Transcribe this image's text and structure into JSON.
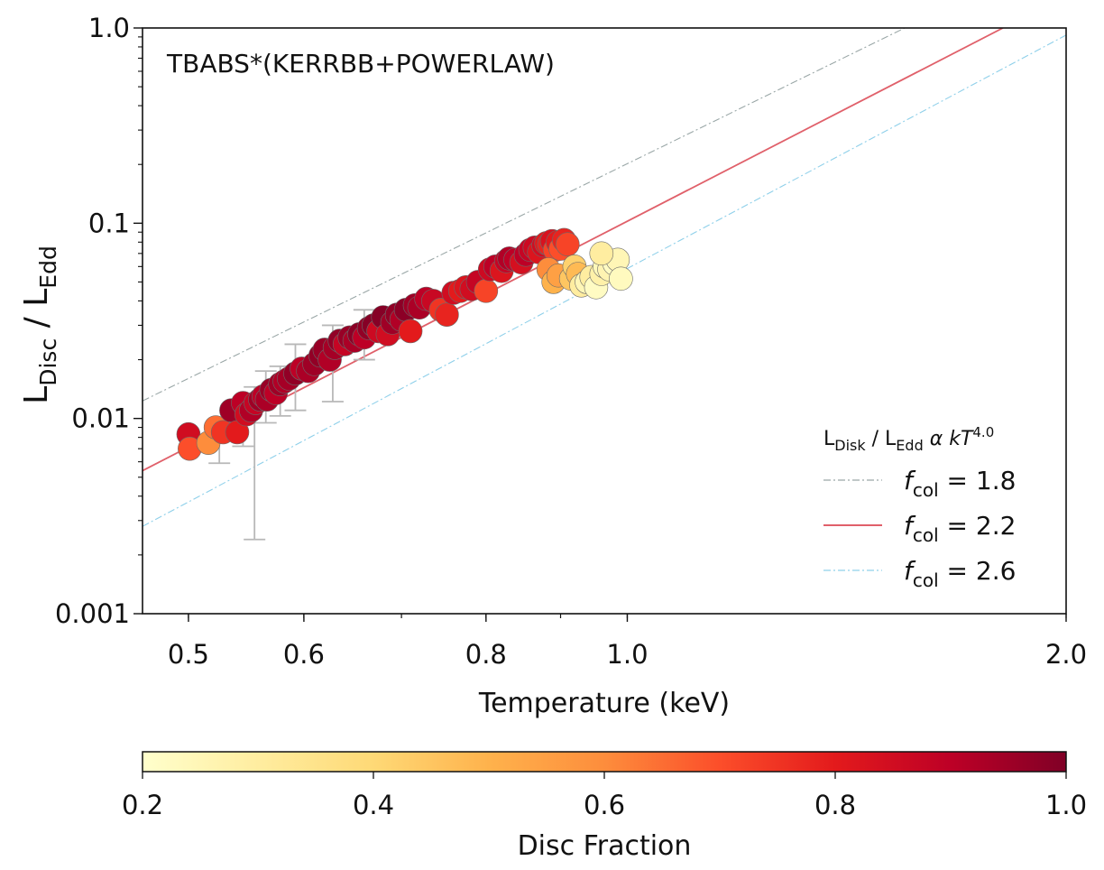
{
  "chart_data": {
    "type": "scatter",
    "annotation": "TBABS*(KERRBB+POWERLAW)",
    "xlabel": "Temperature (keV)",
    "ylabel": "L_Disc / L_Edd",
    "ylabel_parts": {
      "main1": "L",
      "sub1": "Disc",
      "sep": " / L",
      "sub2": "Edd"
    },
    "xscale": "log",
    "yscale": "log",
    "xlim": [
      0.465,
      2.0
    ],
    "ylim": [
      0.001,
      1.0
    ],
    "x_ticks": [
      {
        "v": 0.5,
        "label": "0.5"
      },
      {
        "v": 0.6,
        "label": "0.6"
      },
      {
        "v": 0.8,
        "label": "0.8"
      },
      {
        "v": 1.0,
        "label": "1.0"
      },
      {
        "v": 2.0,
        "label": "2.0"
      }
    ],
    "y_ticks": [
      {
        "v": 0.001,
        "label": "0.001"
      },
      {
        "v": 0.01,
        "label": "0.01"
      },
      {
        "v": 0.1,
        "label": "0.1"
      },
      {
        "v": 1.0,
        "label": "1.0"
      }
    ],
    "legend": {
      "title": {
        "main1": "L",
        "sub1": "Disk",
        "sep": " / L",
        "sub2": "Edd",
        "tail": " α kT",
        "sup": "4.0"
      },
      "position": "lower-right",
      "entries": [
        {
          "f": "f",
          "sub": "col",
          "text": " = 1.8",
          "color": "#9aa7a7",
          "dash": "8,3,2,3"
        },
        {
          "f": "f",
          "sub": "col",
          "text": " = 2.2",
          "color": "#e0606a",
          "dash": ""
        },
        {
          "f": "f",
          "sub": "col",
          "text": " = 2.6",
          "color": "#8fd0ea",
          "dash": "8,3,2,3"
        }
      ]
    },
    "relations": [
      {
        "name": "fcol = 1.8",
        "color": "#9aa7a7",
        "x": [
          0.465,
          1.55
        ],
        "y": [
          0.0123,
          1.0
        ]
      },
      {
        "name": "fcol = 2.2",
        "color": "#e0606a",
        "x": [
          0.465,
          1.81
        ],
        "y": [
          0.0054,
          1.0
        ]
      },
      {
        "name": "fcol = 2.6",
        "color": "#8fd0ea",
        "x": [
          0.465,
          2.0
        ],
        "y": [
          0.0028,
          0.92
        ]
      }
    ],
    "error_bars": [
      {
        "x": 0.525,
        "y": 0.0075,
        "lo": 0.0059,
        "hi": 0.0092
      },
      {
        "x": 0.545,
        "y": 0.0095,
        "lo": 0.0072,
        "hi": 0.0125
      },
      {
        "x": 0.555,
        "y": 0.0107,
        "lo": 0.0024,
        "hi": 0.0145
      },
      {
        "x": 0.565,
        "y": 0.0125,
        "lo": 0.0095,
        "hi": 0.0175
      },
      {
        "x": 0.578,
        "y": 0.015,
        "lo": 0.0103,
        "hi": 0.0185
      },
      {
        "x": 0.592,
        "y": 0.018,
        "lo": 0.011,
        "hi": 0.024
      },
      {
        "x": 0.628,
        "y": 0.022,
        "lo": 0.0122,
        "hi": 0.03
      },
      {
        "x": 0.66,
        "y": 0.028,
        "lo": 0.02,
        "hi": 0.036
      }
    ],
    "series": [
      {
        "name": "Disc Fraction (colour)",
        "x": [
          0.5,
          0.501,
          0.516,
          0.522,
          0.528,
          0.535,
          0.54,
          0.545,
          0.548,
          0.552,
          0.556,
          0.56,
          0.563,
          0.566,
          0.57,
          0.574,
          0.578,
          0.582,
          0.586,
          0.592,
          0.598,
          0.604,
          0.61,
          0.616,
          0.62,
          0.625,
          0.63,
          0.635,
          0.64,
          0.645,
          0.65,
          0.655,
          0.66,
          0.665,
          0.67,
          0.675,
          0.68,
          0.685,
          0.69,
          0.695,
          0.7,
          0.705,
          0.71,
          0.715,
          0.72,
          0.728,
          0.736,
          0.745,
          0.752,
          0.76,
          0.768,
          0.775,
          0.782,
          0.79,
          0.8,
          0.805,
          0.812,
          0.82,
          0.826,
          0.83,
          0.838,
          0.846,
          0.852,
          0.858,
          0.864,
          0.87,
          0.876,
          0.88,
          0.884,
          0.888,
          0.892,
          0.896,
          0.9,
          0.905,
          0.91,
          0.883,
          0.89,
          0.897,
          0.915,
          0.92,
          0.925,
          0.93,
          0.938,
          0.945,
          0.952,
          0.96,
          0.965,
          0.972,
          0.98,
          0.985,
          0.99,
          0.96
        ],
        "y": [
          0.0083,
          0.007,
          0.0075,
          0.009,
          0.0085,
          0.011,
          0.0085,
          0.012,
          0.0105,
          0.011,
          0.012,
          0.0125,
          0.013,
          0.0125,
          0.014,
          0.0135,
          0.015,
          0.0155,
          0.016,
          0.017,
          0.018,
          0.0175,
          0.019,
          0.021,
          0.0225,
          0.02,
          0.023,
          0.025,
          0.024,
          0.026,
          0.025,
          0.027,
          0.026,
          0.029,
          0.03,
          0.028,
          0.033,
          0.027,
          0.031,
          0.034,
          0.032,
          0.036,
          0.028,
          0.038,
          0.037,
          0.041,
          0.04,
          0.036,
          0.034,
          0.044,
          0.045,
          0.047,
          0.046,
          0.05,
          0.045,
          0.058,
          0.06,
          0.057,
          0.064,
          0.066,
          0.065,
          0.063,
          0.069,
          0.073,
          0.075,
          0.071,
          0.077,
          0.079,
          0.078,
          0.081,
          0.073,
          0.08,
          0.074,
          0.082,
          0.078,
          0.058,
          0.05,
          0.054,
          0.052,
          0.06,
          0.055,
          0.048,
          0.05,
          0.053,
          0.047,
          0.055,
          0.06,
          0.058,
          0.062,
          0.065,
          0.052,
          0.07
        ],
        "c": [
          0.85,
          0.7,
          0.6,
          0.65,
          0.75,
          0.95,
          0.8,
          0.9,
          0.85,
          0.92,
          0.88,
          0.95,
          0.9,
          0.93,
          0.96,
          0.9,
          0.95,
          0.92,
          0.94,
          0.97,
          0.9,
          0.93,
          0.95,
          0.97,
          0.96,
          0.92,
          0.94,
          0.97,
          0.88,
          0.96,
          0.93,
          0.98,
          0.9,
          0.97,
          0.99,
          0.86,
          0.99,
          0.85,
          0.95,
          0.97,
          0.92,
          0.98,
          0.8,
          0.95,
          0.93,
          0.9,
          0.87,
          0.75,
          0.78,
          0.85,
          0.8,
          0.82,
          0.85,
          0.88,
          0.72,
          0.86,
          0.9,
          0.82,
          0.88,
          0.92,
          0.9,
          0.84,
          0.9,
          0.88,
          0.86,
          0.82,
          0.85,
          0.8,
          0.78,
          0.83,
          0.72,
          0.8,
          0.7,
          0.78,
          0.72,
          0.6,
          0.5,
          0.55,
          0.45,
          0.42,
          0.48,
          0.3,
          0.25,
          0.3,
          0.22,
          0.28,
          0.24,
          0.26,
          0.22,
          0.25,
          0.23,
          0.3
        ]
      }
    ],
    "colorbar": {
      "label": "Disc Fraction",
      "range": [
        0.2,
        1.0
      ],
      "ticks": [
        {
          "v": 0.2,
          "label": "0.2"
        },
        {
          "v": 0.4,
          "label": "0.4"
        },
        {
          "v": 0.6,
          "label": "0.6"
        },
        {
          "v": 0.8,
          "label": "0.8"
        },
        {
          "v": 1.0,
          "label": "1.0"
        }
      ],
      "colormap": [
        "#ffffcc",
        "#ffeda0",
        "#fed976",
        "#feb24c",
        "#fd8d3c",
        "#fc4e2a",
        "#e31a1c",
        "#bd0026",
        "#800026"
      ]
    }
  }
}
